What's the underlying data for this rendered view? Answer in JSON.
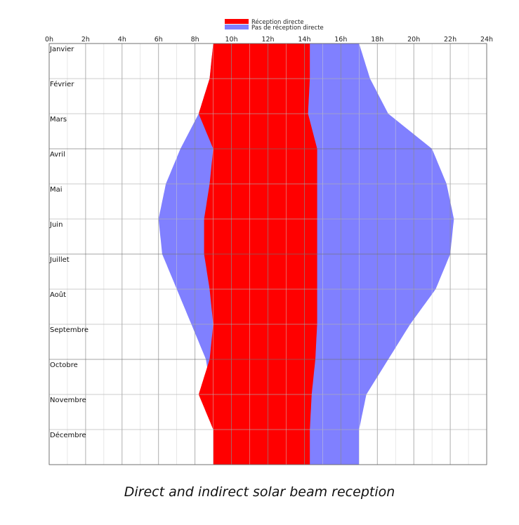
{
  "caption": "Direct and indirect solar beam reception",
  "chart_data": {
    "type": "area",
    "x_ticks": [
      "0h",
      "2h",
      "4h",
      "6h",
      "8h",
      "10h",
      "12h",
      "14h",
      "16h",
      "18h",
      "20h",
      "22h",
      "24h"
    ],
    "xlim": [
      0,
      24
    ],
    "months": [
      "Janvier",
      "Février",
      "Mars",
      "Avril",
      "Mai",
      "Juin",
      "Juillet",
      "Août",
      "Septembre",
      "Octobre",
      "Novembre",
      "Décembre"
    ],
    "grid": true,
    "legend": {
      "placement": "top-center",
      "entries": [
        {
          "label": "Réception directe",
          "color": "#ff0000"
        },
        {
          "label": "Pas de réception directe",
          "color": "#8080ff"
        }
      ]
    },
    "series": [
      {
        "name": "Pas de réception directe",
        "color": "#8080ff",
        "sunrise": [
          9.0,
          8.8,
          8.2,
          7.2,
          6.4,
          6.0,
          6.2,
          7.0,
          7.8,
          8.6,
          8.9,
          9.0
        ],
        "sunset": [
          17.0,
          17.6,
          18.6,
          21.0,
          21.8,
          22.2,
          22.0,
          21.2,
          19.8,
          18.6,
          17.4,
          17.0
        ]
      },
      {
        "name": "Réception directe",
        "color": "#ff0000",
        "start": [
          9.0,
          8.8,
          8.2,
          9.0,
          8.8,
          8.5,
          8.5,
          8.8,
          9.0,
          8.8,
          8.2,
          9.0
        ],
        "end": [
          14.3,
          14.3,
          14.2,
          14.7,
          14.7,
          14.7,
          14.7,
          14.7,
          14.7,
          14.6,
          14.4,
          14.3
        ]
      }
    ]
  }
}
